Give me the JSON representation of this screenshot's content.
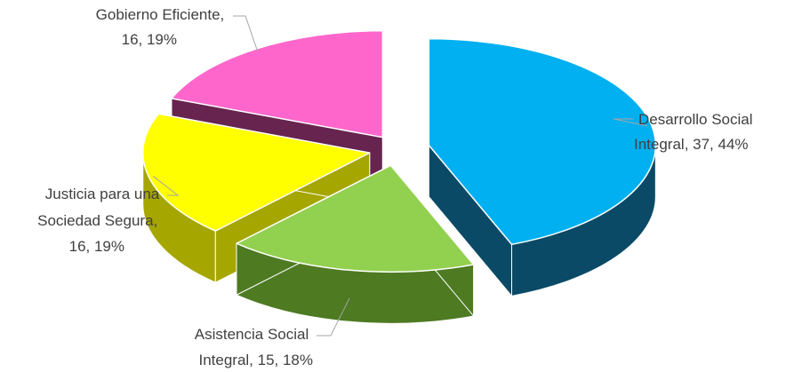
{
  "chart_data": {
    "type": "pie",
    "style": "3d-exploded",
    "slices": [
      {
        "label": "Desarrollo Social Integral",
        "value": 37,
        "percent": "44%",
        "color": "#00B0F0",
        "side_color": "#0A4A66",
        "label_lines": [
          "Desarrollo Social",
          "Integral, 37, 44%"
        ]
      },
      {
        "label": "Asistencia Social Integral",
        "value": 15,
        "percent": "18%",
        "color": "#92D050",
        "side_color": "#4E7A22",
        "label_lines": [
          "Asistencia Social",
          "Integral, 15, 18%"
        ]
      },
      {
        "label": "Justicia para una Sociedad Segura",
        "value": 16,
        "percent": "19%",
        "color": "#FFFF00",
        "side_color": "#A6A600",
        "label_lines": [
          "Justicia para una",
          "Sociedad Segura,",
          "16, 19%"
        ]
      },
      {
        "label": "Gobierno Eficiente",
        "value": 16,
        "percent": "19%",
        "color": "#FF66CC",
        "side_color": "#66244F",
        "label_lines": [
          "Gobierno Eficiente,",
          "16, 19%"
        ]
      }
    ],
    "legend": "none",
    "title": ""
  }
}
